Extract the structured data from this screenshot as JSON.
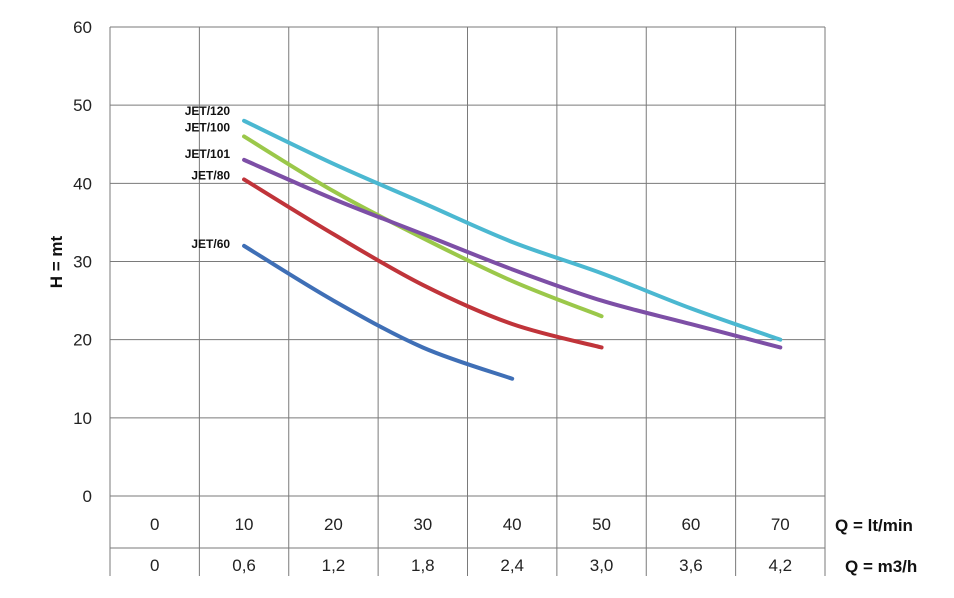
{
  "chart_data": {
    "type": "line",
    "ylabel": "H = mt",
    "ylim": [
      0,
      60
    ],
    "yticks": [
      0,
      10,
      20,
      30,
      40,
      50,
      60
    ],
    "x_rows": [
      {
        "label": "Q = lt/min",
        "ticks": [
          "0",
          "10",
          "20",
          "30",
          "40",
          "50",
          "60",
          "70"
        ]
      },
      {
        "label": "Q = m3/h",
        "ticks": [
          "0",
          "0,6",
          "1,2",
          "1,8",
          "2,4",
          "3,0",
          "3,6",
          "4,2"
        ]
      }
    ],
    "xlim": [
      0,
      70
    ],
    "grid": true,
    "series": [
      {
        "name": "JET/120",
        "color": "#4bb8d1",
        "x": [
          10,
          20,
          30,
          40,
          50,
          60,
          70
        ],
        "y": [
          48,
          42.5,
          37.5,
          32.5,
          28.5,
          24,
          20
        ]
      },
      {
        "name": "JET/100",
        "color": "#9bc84a",
        "x": [
          10,
          20,
          30,
          40,
          50
        ],
        "y": [
          46,
          39,
          33,
          27.5,
          23
        ]
      },
      {
        "name": "JET/101",
        "color": "#7d4fa6",
        "x": [
          10,
          20,
          30,
          40,
          50,
          60,
          70
        ],
        "y": [
          43,
          38,
          33.5,
          29,
          25,
          22,
          19
        ]
      },
      {
        "name": "JET/80",
        "color": "#c0343a",
        "x": [
          10,
          20,
          30,
          40,
          50
        ],
        "y": [
          40.5,
          33.5,
          27,
          22,
          19
        ]
      },
      {
        "name": "JET/60",
        "color": "#3f6fb6",
        "x": [
          10,
          20,
          30,
          40
        ],
        "y": [
          32,
          25,
          19,
          15
        ]
      }
    ]
  }
}
